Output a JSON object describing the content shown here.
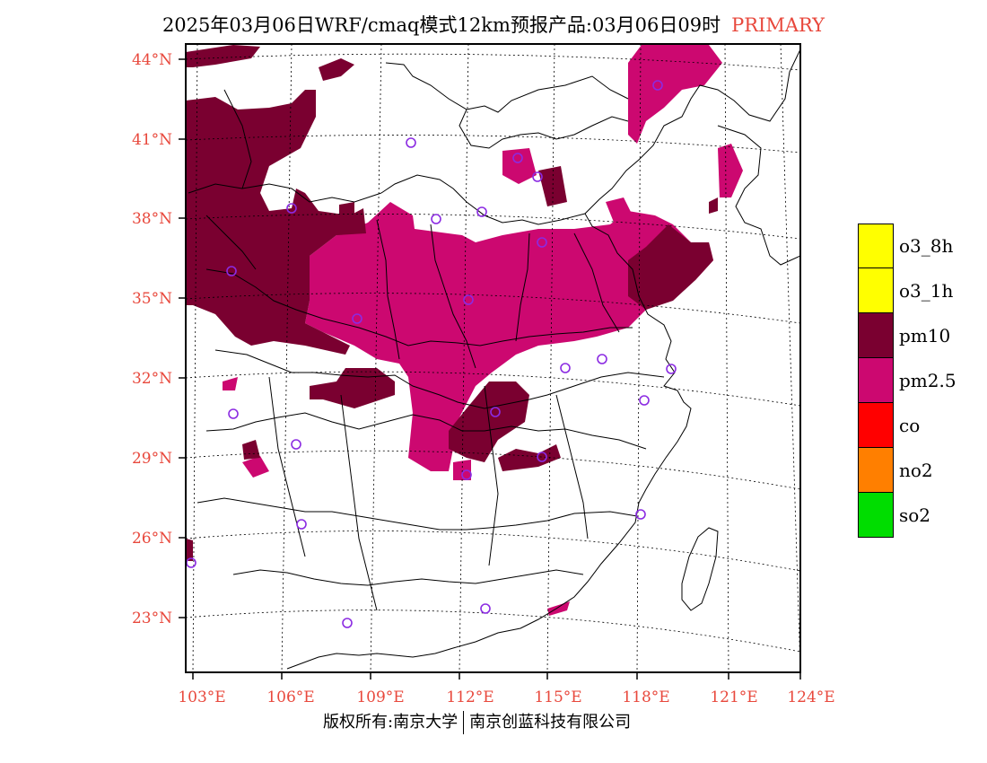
{
  "title": {
    "main": "2025年03月06日WRF/cmaq模式12km预报产品:03月06日09时",
    "tag": "PRIMARY"
  },
  "axes": {
    "lat_labels": [
      "44°N",
      "41°N",
      "38°N",
      "35°N",
      "32°N",
      "29°N",
      "26°N",
      "23°N"
    ],
    "lon_labels": [
      "103°E",
      "106°E",
      "109°E",
      "112°E",
      "115°E",
      "118°E",
      "121°E",
      "124°E"
    ]
  },
  "legend": {
    "items": [
      {
        "label": "o3_8h",
        "color": "#ffff00"
      },
      {
        "label": "o3_1h",
        "color": "#ffff00"
      },
      {
        "label": "pm10",
        "color": "#7a0030"
      },
      {
        "label": "pm2.5",
        "color": "#cc0870"
      },
      {
        "label": "co",
        "color": "#ff0000"
      },
      {
        "label": "no2",
        "color": "#ff7f00"
      },
      {
        "label": "so2",
        "color": "#00dd00"
      }
    ]
  },
  "copyright": {
    "left": "版权所有:南京大学",
    "right": "南京创蓝科技有限公司"
  },
  "colors": {
    "pm10": "#7a0030",
    "pm25": "#cc0870",
    "station": "#8b2be2",
    "axis_label": "#e8483c"
  }
}
